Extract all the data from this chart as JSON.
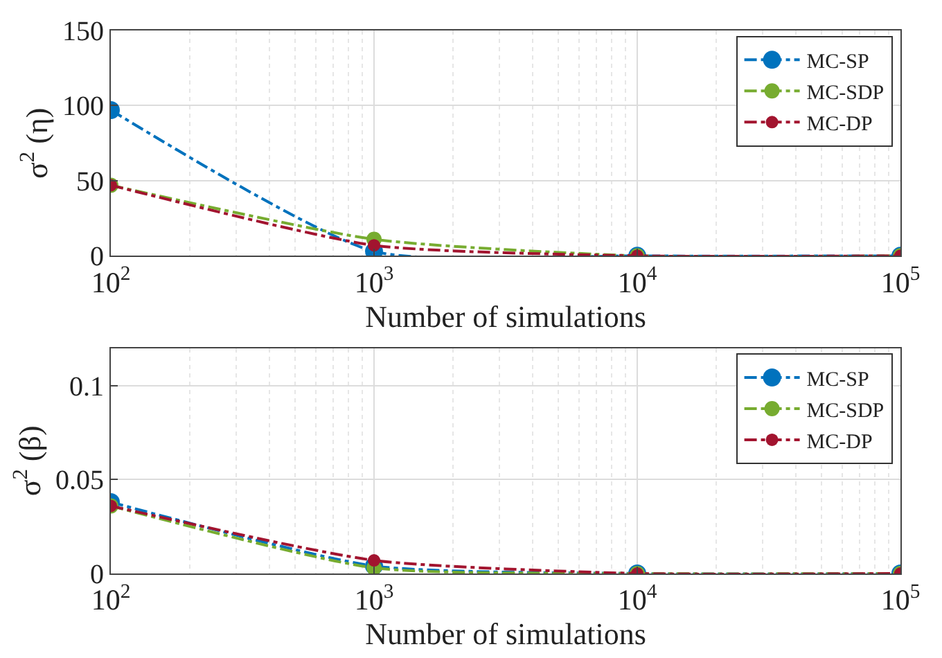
{
  "chart_data": [
    {
      "type": "line",
      "xlabel": "Number of simulations",
      "ylabel": "σ$^{2}$ (η)",
      "x": [
        100,
        1000,
        10000,
        100000
      ],
      "log": "x",
      "xlim": [
        100,
        100000
      ],
      "xticks": [
        {
          "value": 100,
          "label": "10$^{2}$"
        },
        {
          "value": 1000,
          "label": "10$^{3}$"
        },
        {
          "value": 10000,
          "label": "10$^{4}$"
        },
        {
          "value": 100000,
          "label": "10$^{5}$"
        }
      ],
      "ylim": [
        0,
        150
      ],
      "yticks": [
        0,
        50,
        100,
        150
      ],
      "grid": true,
      "legend": "top right",
      "marker": "circle",
      "line_style": "dashdot",
      "series": [
        {
          "name": "MC-SP",
          "color": "#0072bd",
          "values": [
            97,
            3,
            0,
            0
          ]
        },
        {
          "name": "MC-SDP",
          "color": "#77ac30",
          "values": [
            47,
            11,
            0,
            0
          ]
        },
        {
          "name": "MC-DP",
          "color": "#a2142f",
          "values": [
            47,
            7,
            0,
            0
          ]
        }
      ]
    },
    {
      "type": "line",
      "xlabel": "Number of simulations",
      "ylabel": "σ$^{2}$ (β)",
      "x": [
        100,
        1000,
        10000,
        100000
      ],
      "log": "x",
      "xlim": [
        100,
        100000
      ],
      "xticks": [
        {
          "value": 100,
          "label": "10$^{2}$"
        },
        {
          "value": 1000,
          "label": "10$^{3}$"
        },
        {
          "value": 10000,
          "label": "10$^{4}$"
        },
        {
          "value": 100000,
          "label": "10$^{5}$"
        }
      ],
      "ylim": [
        0,
        0.12
      ],
      "yticks": [
        0,
        0.05,
        0.1
      ],
      "grid": true,
      "legend": "top right",
      "marker": "circle",
      "line_style": "dashdot",
      "series": [
        {
          "name": "MC-SP",
          "color": "#0072bd",
          "values": [
            0.038,
            0.004,
            0,
            0
          ]
        },
        {
          "name": "MC-SDP",
          "color": "#77ac30",
          "values": [
            0.036,
            0.003,
            0,
            0
          ]
        },
        {
          "name": "MC-DP",
          "color": "#a2142f",
          "values": [
            0.036,
            0.007,
            0,
            0
          ]
        }
      ]
    }
  ]
}
